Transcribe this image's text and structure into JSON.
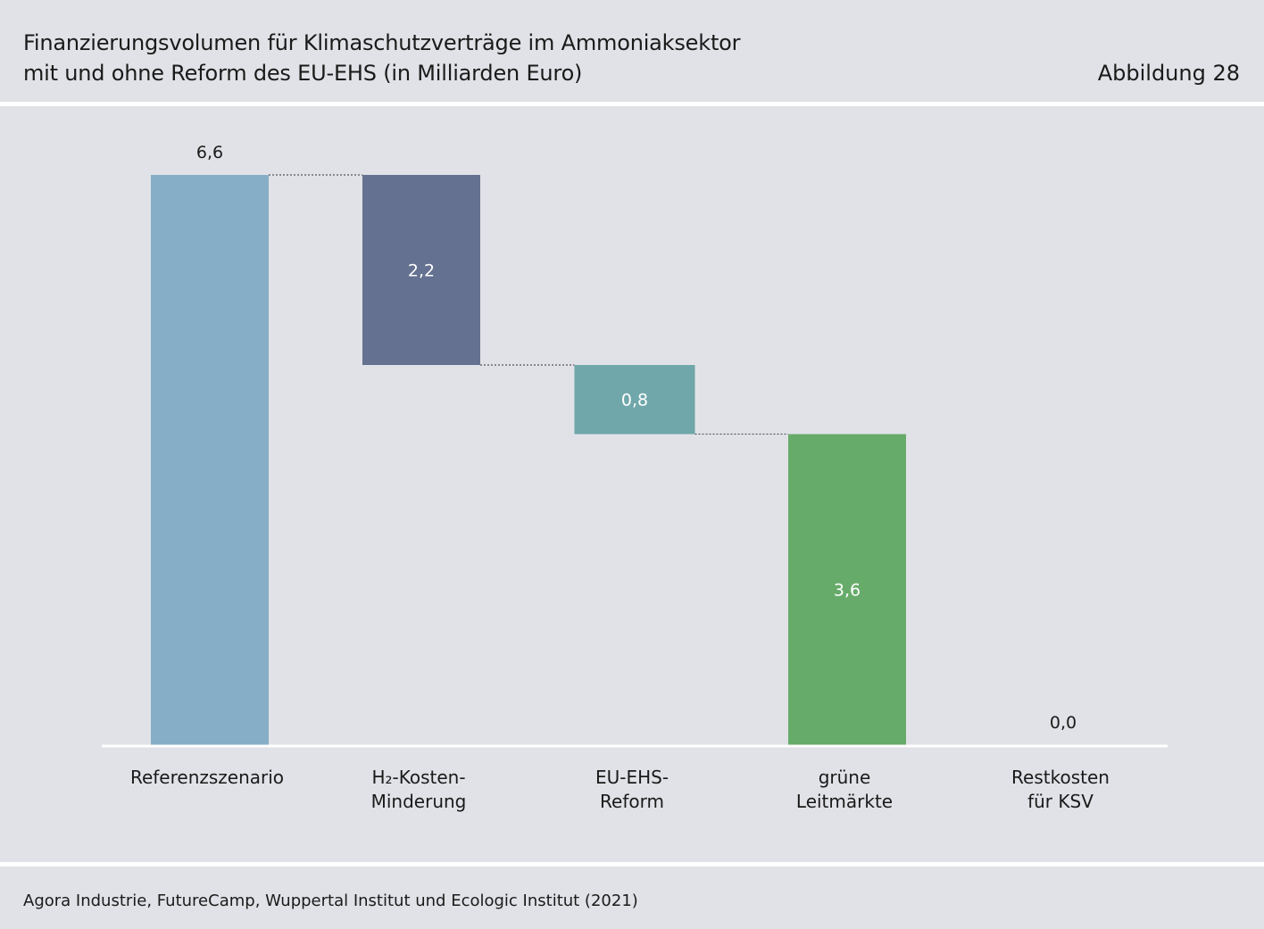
{
  "header": {
    "title_line1": "Finanzierungsvolumen für Klimaschutzverträge im Ammoniaksektor",
    "title_line2": "mit und ohne Reform des EU-EHS (in Milliarden Euro)",
    "figure_label": "Abbildung 28"
  },
  "footer": {
    "source": "Agora Industrie, FutureCamp, Wuppertal Institut und Ecologic Institut (2021)"
  },
  "colors": {
    "background": "#e1e2e7",
    "referenz": "#87aec7",
    "h2": "#657190",
    "ehs": "#6fa7aa",
    "leitmaerkte": "#67ab6a",
    "connector": "#555555",
    "baseline": "#ffffff"
  },
  "chart_data": {
    "type": "waterfall",
    "title": "Finanzierungsvolumen für Klimaschutzverträge im Ammoniaksektor mit und ohne Reform des EU-EHS (in Milliarden Euro)",
    "ylim": [
      0,
      6.6
    ],
    "categories": [
      {
        "label_lines": [
          "Referenzszenario"
        ],
        "kind": "total",
        "value": 6.6,
        "label": "6,6",
        "color_key": "referenz"
      },
      {
        "label_lines": [
          "H₂-Kosten-",
          "Minderung"
        ],
        "kind": "decrease",
        "value": 2.2,
        "label": "2,2",
        "color_key": "h2"
      },
      {
        "label_lines": [
          "EU-EHS-",
          "Reform"
        ],
        "kind": "decrease",
        "value": 0.8,
        "label": "0,8",
        "color_key": "ehs"
      },
      {
        "label_lines": [
          "grüne",
          "Leitmärkte"
        ],
        "kind": "decrease",
        "value": 3.6,
        "label": "3,6",
        "color_key": "leitmaerkte"
      },
      {
        "label_lines": [
          "Restkosten",
          "für KSV"
        ],
        "kind": "total",
        "value": 0.0,
        "label": "0,0",
        "color_key": "referenz"
      }
    ]
  }
}
